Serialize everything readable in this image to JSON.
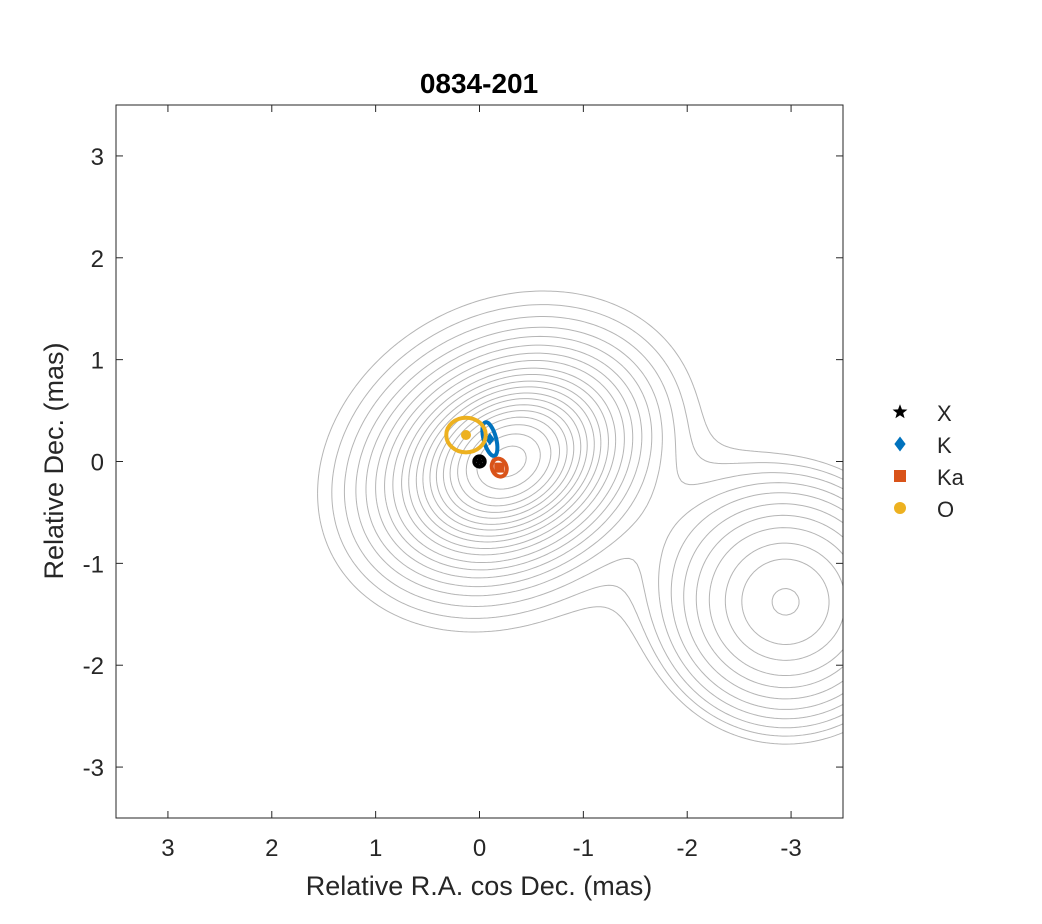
{
  "chart_data": {
    "type": "scatter",
    "title": "0834-201",
    "xlabel": "Relative R.A. cos Dec. (mas)",
    "ylabel": "Relative Dec. (mas)",
    "xlim": [
      3.5,
      -3.5
    ],
    "ylim": [
      -3.5,
      3.5
    ],
    "x_reversed": true,
    "x_ticks": [
      3,
      2,
      1,
      0,
      -1,
      -2,
      -3
    ],
    "x_tick_labels": [
      "3",
      "2",
      "1",
      "0",
      "-1",
      "-2",
      "-3"
    ],
    "y_ticks": [
      3,
      2,
      1,
      0,
      -1,
      -2,
      -3
    ],
    "y_tick_labels": [
      "3",
      "2",
      "1",
      "0",
      "-1",
      "-2",
      "-3"
    ],
    "grid": false,
    "legend_position": "outside-right",
    "series": [
      {
        "name": "X",
        "marker": "star",
        "color": "#000000",
        "points": [
          {
            "x": 0.0,
            "y": 0.0
          }
        ],
        "error_ellipse": {
          "rx": 0.05,
          "ry": 0.05,
          "angle": 0
        }
      },
      {
        "name": "K",
        "marker": "diamond",
        "color": "#0072BD",
        "points": [
          {
            "x": -0.1,
            "y": 0.22
          }
        ],
        "error_ellipse": {
          "rx": 0.06,
          "ry": 0.17,
          "angle": -15
        }
      },
      {
        "name": "Ka",
        "marker": "square",
        "color": "#D95319",
        "points": [
          {
            "x": -0.19,
            "y": -0.06
          }
        ],
        "error_ellipse": {
          "rx": 0.07,
          "ry": 0.09,
          "angle": -20
        }
      },
      {
        "name": "O",
        "marker": "circle",
        "color": "#EDB120",
        "points": [
          {
            "x": 0.13,
            "y": 0.26
          }
        ],
        "error_ellipse": {
          "rx": 0.19,
          "ry": 0.17,
          "angle": 0
        }
      }
    ],
    "contours": {
      "color": "#b5b5b5",
      "components": [
        {
          "x": -0.28,
          "y": 0.0,
          "scale": 1.0
        },
        {
          "x": -2.95,
          "y": -1.38,
          "scale": 0.3
        }
      ],
      "levels": [
        0.95,
        0.85,
        0.75,
        0.66,
        0.58,
        0.51,
        0.44,
        0.38,
        0.32,
        0.27,
        0.22,
        0.18,
        0.14,
        0.11,
        0.085,
        0.065,
        0.05,
        0.038,
        0.029,
        0.022
      ]
    }
  }
}
